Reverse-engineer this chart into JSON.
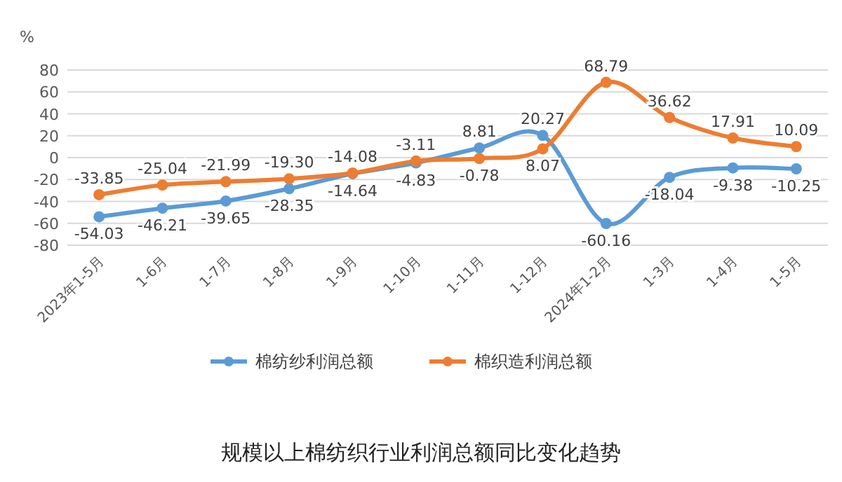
{
  "chart_data": {
    "type": "line",
    "title": "规模以上棉纺织行业利润总额同比变化趋势",
    "ylabel": "%",
    "categories": [
      "2023年1-5月",
      "1-6月",
      "1-7月",
      "1-8月",
      "1-9月",
      "1-10月",
      "1-11月",
      "1-12月",
      "2024年1-2月",
      "1-3月",
      "1-4月",
      "1-5月"
    ],
    "series": [
      {
        "name": "棉纺纱利润总额",
        "color": "#5b9bd5",
        "values": [
          -54.03,
          -46.21,
          -39.65,
          -28.35,
          -14.64,
          -4.83,
          8.81,
          20.27,
          -60.16,
          -18.04,
          -9.38,
          -10.25
        ],
        "value_labels": [
          "-54.03",
          "-46.21",
          "-39.65",
          "-28.35",
          "-14.64",
          "-4.83",
          "8.81",
          "20.27",
          "-60.16",
          "-18.04",
          "-9.38",
          "-10.25"
        ]
      },
      {
        "name": "棉织造利润总额",
        "color": "#ed7d31",
        "values": [
          -33.85,
          -25.04,
          -21.99,
          -19.3,
          -14.08,
          -3.11,
          -0.78,
          8.07,
          68.79,
          36.62,
          17.91,
          10.09
        ],
        "value_labels": [
          "-33.85",
          "-25.04",
          "-21.99",
          "-19.30",
          "-14.08",
          "-3.11",
          "-0.78",
          "8.07",
          "68.79",
          "36.62",
          "17.91",
          "10.09"
        ]
      }
    ],
    "ylim": [
      -80,
      80
    ],
    "yticks": [
      -80,
      -60,
      -40,
      -20,
      0,
      20,
      40,
      60,
      80
    ],
    "grid": "y",
    "legend": "bottom",
    "marker": "circle",
    "line_style": "solid"
  }
}
